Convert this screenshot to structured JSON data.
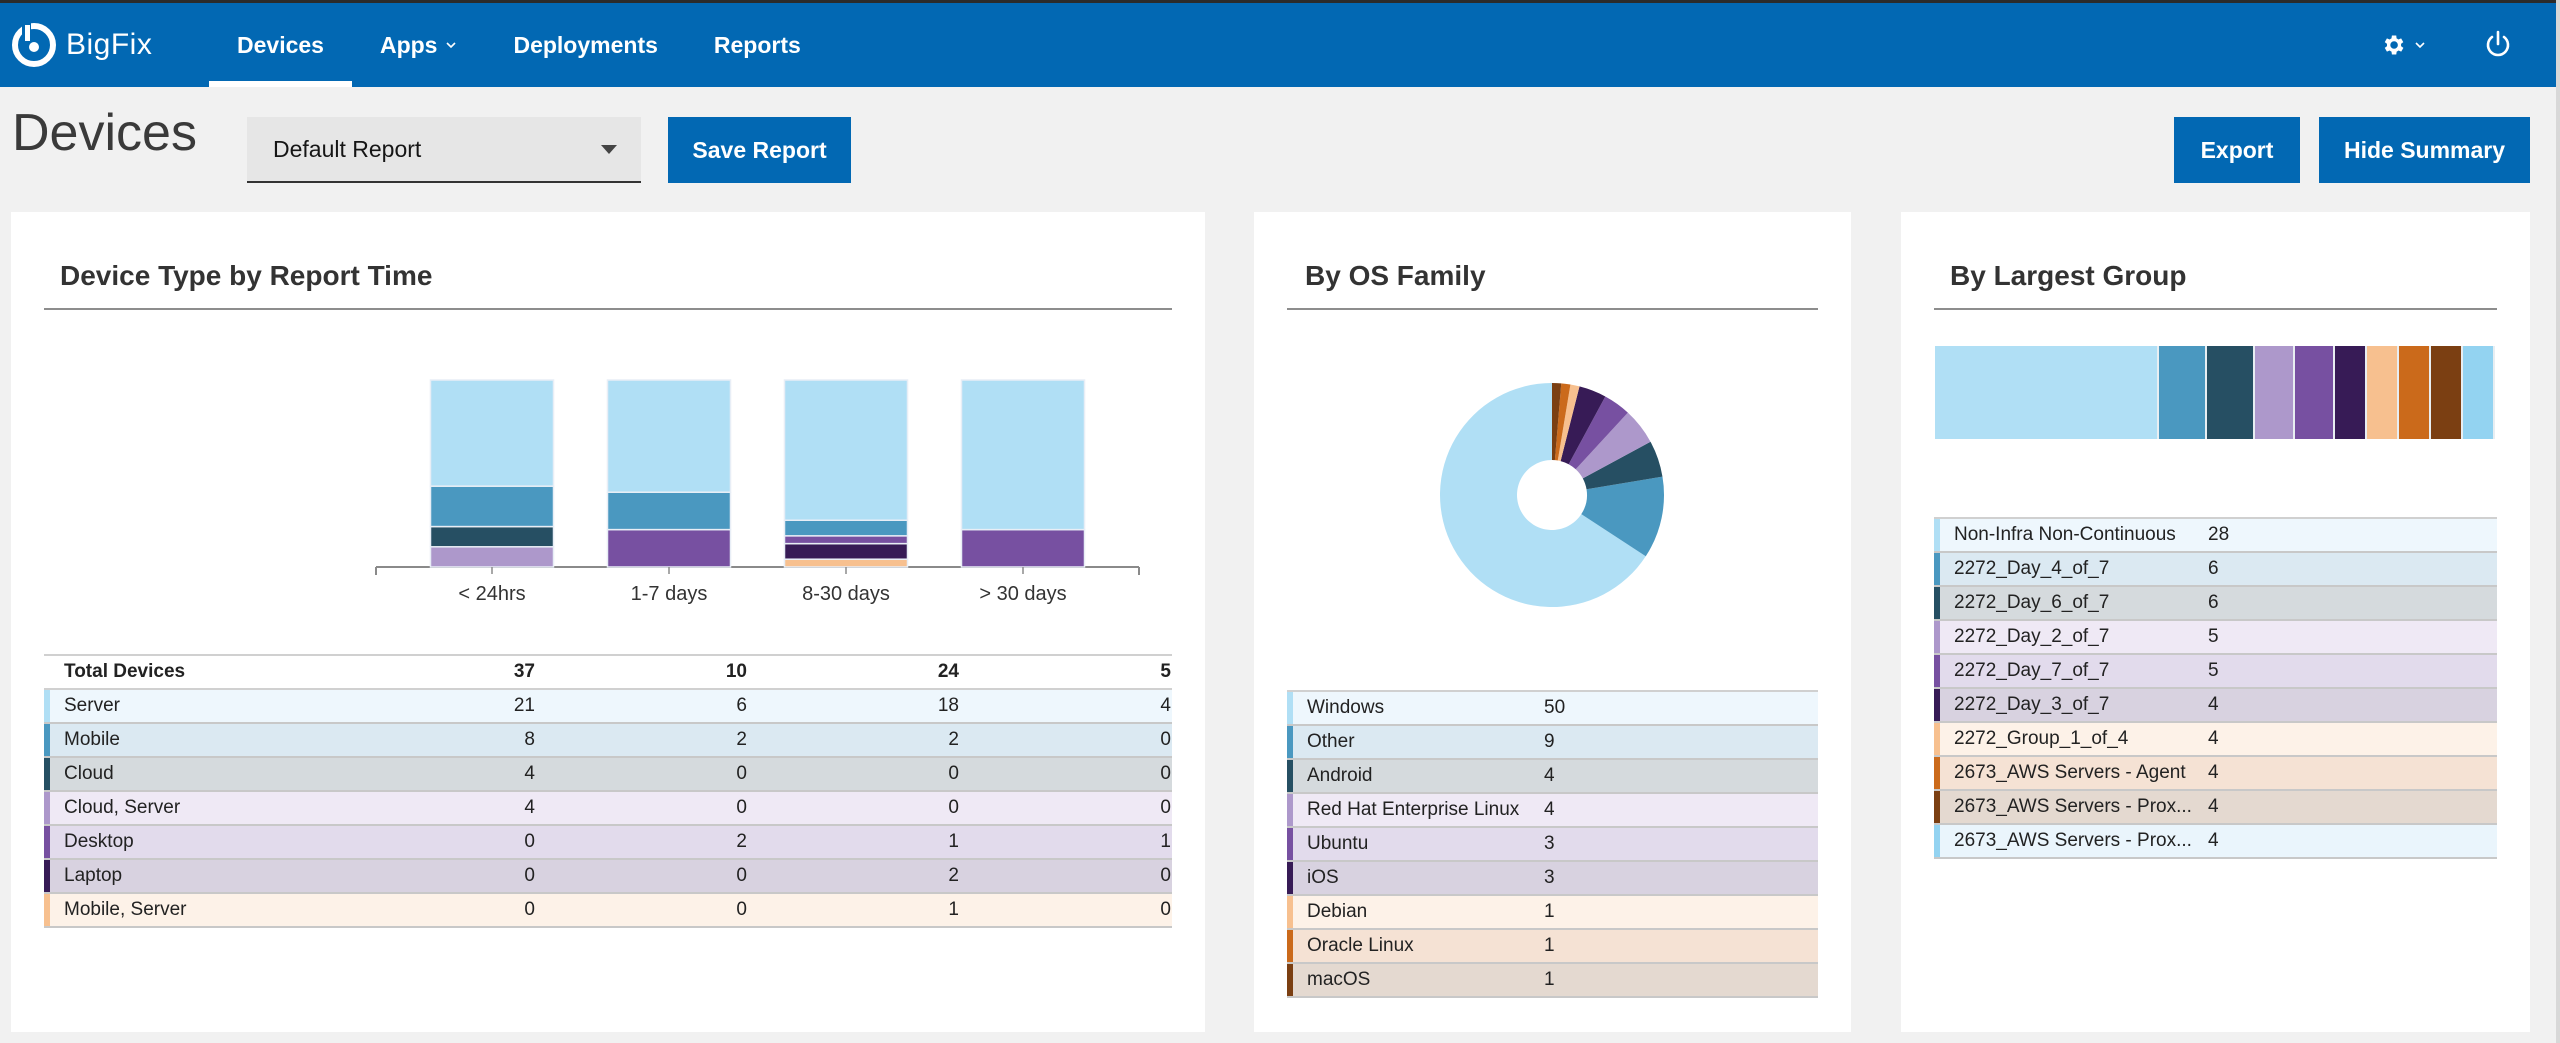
{
  "app": {
    "brand": "BigFix",
    "nav": [
      {
        "label": "Devices",
        "active": true,
        "has_menu": false
      },
      {
        "label": "Apps",
        "active": false,
        "has_menu": true
      },
      {
        "label": "Deployments",
        "active": false,
        "has_menu": false
      },
      {
        "label": "Reports",
        "active": false,
        "has_menu": false
      }
    ],
    "header_icons": [
      "gear-icon",
      "chevron-down-icon",
      "power-icon"
    ]
  },
  "page": {
    "title": "Devices",
    "report_select": {
      "value": "Default Report"
    },
    "buttons": {
      "save": "Save Report",
      "export": "Export",
      "hide_summary": "Hide Summary"
    }
  },
  "colors": {
    "brand": "#0268b3",
    "palette": [
      "#b0dff5",
      "#4a98c0",
      "#264f63",
      "#ad98cb",
      "#7750a1",
      "#371b56",
      "#f7c08f",
      "#cb6a1b",
      "#7b3f12",
      "#93d3f1"
    ],
    "row_tints": [
      "#eef7fd",
      "#dbe9f2",
      "#d5dadd",
      "#efe9f5",
      "#e2dbec",
      "#d8d2e0",
      "#fdf2e8",
      "#f5e2d4",
      "#e4d9d0",
      "#eaf5fc"
    ]
  },
  "device_type_card": {
    "title": "Device Type by Report Time",
    "total_label": "Total Devices",
    "totals": [
      37,
      10,
      24,
      5
    ],
    "rows": [
      {
        "label": "Server",
        "values": [
          21,
          6,
          18,
          4
        ],
        "color_index": 0
      },
      {
        "label": "Mobile",
        "values": [
          8,
          2,
          2,
          0
        ],
        "color_index": 1
      },
      {
        "label": "Cloud",
        "values": [
          4,
          0,
          0,
          0
        ],
        "color_index": 2
      },
      {
        "label": "Cloud, Server",
        "values": [
          4,
          0,
          0,
          0
        ],
        "color_index": 3
      },
      {
        "label": "Desktop",
        "values": [
          0,
          2,
          1,
          1
        ],
        "color_index": 4
      },
      {
        "label": "Laptop",
        "values": [
          0,
          0,
          2,
          0
        ],
        "color_index": 5
      },
      {
        "label": "Mobile, Server",
        "values": [
          0,
          0,
          1,
          0
        ],
        "color_index": 6
      }
    ]
  },
  "os_card": {
    "title": "By OS Family",
    "rows": [
      {
        "label": "Windows",
        "value": 50
      },
      {
        "label": "Other",
        "value": 9
      },
      {
        "label": "Android",
        "value": 4
      },
      {
        "label": "Red Hat Enterprise Linux",
        "value": 4
      },
      {
        "label": "Ubuntu",
        "value": 3
      },
      {
        "label": "iOS",
        "value": 3
      },
      {
        "label": "Debian",
        "value": 1
      },
      {
        "label": "Oracle Linux",
        "value": 1
      },
      {
        "label": "macOS",
        "value": 1
      }
    ]
  },
  "group_card": {
    "title": "By Largest Group",
    "rows": [
      {
        "label": "Non-Infra Non-Continuous",
        "value": 28
      },
      {
        "label": "2272_Day_4_of_7",
        "value": 6
      },
      {
        "label": "2272_Day_6_of_7",
        "value": 6
      },
      {
        "label": "2272_Day_2_of_7",
        "value": 5
      },
      {
        "label": "2272_Day_7_of_7",
        "value": 5
      },
      {
        "label": "2272_Day_3_of_7",
        "value": 4
      },
      {
        "label": "2272_Group_1_of_4",
        "value": 4
      },
      {
        "label": "2673_AWS Servers - Agent",
        "value": 4
      },
      {
        "label": "2673_AWS Servers - Prox...",
        "value": 4
      },
      {
        "label": "2673_AWS Servers - Prox...",
        "value": 4
      }
    ]
  },
  "chart_data": [
    {
      "type": "bar",
      "stacked": true,
      "normalized": true,
      "title": "Device Type by Report Time",
      "categories": [
        "< 24hrs",
        "1-7 days",
        "8-30 days",
        "> 30 days"
      ],
      "series": [
        {
          "name": "Server",
          "values": [
            21,
            6,
            18,
            4
          ]
        },
        {
          "name": "Mobile",
          "values": [
            8,
            2,
            2,
            0
          ]
        },
        {
          "name": "Cloud",
          "values": [
            4,
            0,
            0,
            0
          ]
        },
        {
          "name": "Cloud, Server",
          "values": [
            4,
            0,
            0,
            0
          ]
        },
        {
          "name": "Desktop",
          "values": [
            0,
            2,
            1,
            1
          ]
        },
        {
          "name": "Laptop",
          "values": [
            0,
            0,
            2,
            0
          ]
        },
        {
          "name": "Mobile, Server",
          "values": [
            0,
            0,
            1,
            0
          ]
        }
      ],
      "xlabel": "",
      "ylabel": "",
      "grid": false
    },
    {
      "type": "pie",
      "donut": true,
      "title": "By OS Family",
      "labels": [
        "Windows",
        "Other",
        "Android",
        "Red Hat Enterprise Linux",
        "Ubuntu",
        "iOS",
        "Debian",
        "Oracle Linux",
        "macOS"
      ],
      "values": [
        50,
        9,
        4,
        4,
        3,
        3,
        1,
        1,
        1
      ]
    },
    {
      "type": "bar",
      "stacked": true,
      "orientation": "horizontal",
      "title": "By Largest Group",
      "labels": [
        "Non-Infra Non-Continuous",
        "2272_Day_4_of_7",
        "2272_Day_6_of_7",
        "2272_Day_2_of_7",
        "2272_Day_7_of_7",
        "2272_Day_3_of_7",
        "2272_Group_1_of_4",
        "2673_AWS Servers - Agent",
        "2673_AWS Servers - Prox...",
        "2673_AWS Servers - Prox..."
      ],
      "values": [
        28,
        6,
        6,
        5,
        5,
        4,
        4,
        4,
        4,
        4
      ]
    }
  ]
}
